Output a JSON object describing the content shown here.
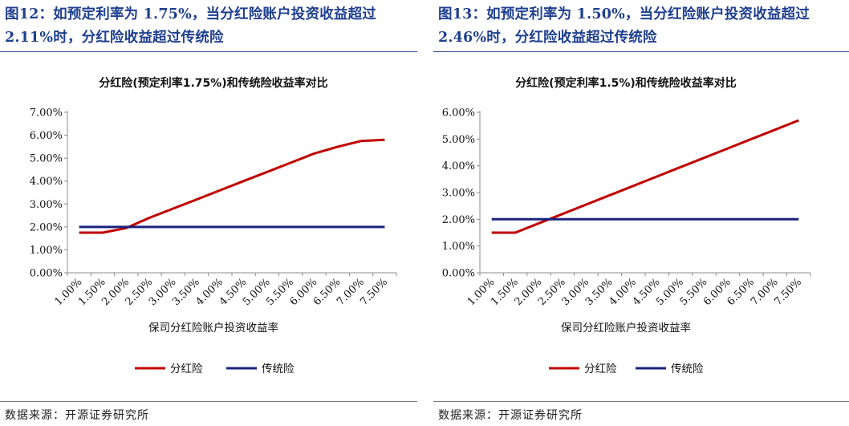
{
  "figures": [
    {
      "title": "图12：如预定利率为 1.75%，当分红险账户投资收益超过 2.11%时，分红险收益超过传统险",
      "source": "数据来源：开源证券研究所"
    },
    {
      "title": "图13：如预定利率为 1.50%，当分红险账户投资收益超过 2.46%时，分红险收益超过传统险",
      "source": "数据来源：开源证券研究所"
    }
  ],
  "chart_data": [
    {
      "type": "line",
      "title": "分红险(预定利率1.75%)和传统险收益率对比",
      "xlabel": "保司分红险账户投资收益率",
      "ylabel": "",
      "x": [
        "1.00%",
        "1.50%",
        "2.00%",
        "2.50%",
        "3.00%",
        "3.50%",
        "4.00%",
        "4.50%",
        "5.00%",
        "5.50%",
        "6.00%",
        "6.50%",
        "7.00%",
        "7.50%"
      ],
      "ylim": [
        0,
        7
      ],
      "yticks": [
        "0.00%",
        "1.00%",
        "2.00%",
        "3.00%",
        "4.00%",
        "5.00%",
        "6.00%",
        "7.00%"
      ],
      "series": [
        {
          "name": "分红险",
          "color": "#c00000",
          "values": [
            1.75,
            1.75,
            1.95,
            2.4,
            2.8,
            3.2,
            3.6,
            4.0,
            4.4,
            4.8,
            5.2,
            5.5,
            5.75,
            5.8
          ]
        },
        {
          "name": "传统险",
          "color": "#1a237e",
          "values": [
            2.0,
            2.0,
            2.0,
            2.0,
            2.0,
            2.0,
            2.0,
            2.0,
            2.0,
            2.0,
            2.0,
            2.0,
            2.0,
            2.0
          ]
        }
      ],
      "legend": "bottom",
      "grid": false
    },
    {
      "type": "line",
      "title": "分红险(预定利率1.5%)和传统险收益率对比",
      "xlabel": "保司分红险账户投资收益率",
      "ylabel": "",
      "x": [
        "1.00%",
        "1.50%",
        "2.00%",
        "2.50%",
        "3.00%",
        "3.50%",
        "4.00%",
        "4.50%",
        "5.00%",
        "5.50%",
        "6.00%",
        "6.50%",
        "7.00%",
        "7.50%"
      ],
      "ylim": [
        0,
        6
      ],
      "yticks": [
        "0.00%",
        "1.00%",
        "2.00%",
        "3.00%",
        "4.00%",
        "5.00%",
        "6.00%"
      ],
      "series": [
        {
          "name": "分红险",
          "color": "#c00000",
          "values": [
            1.5,
            1.5,
            1.85,
            2.2,
            2.55,
            2.9,
            3.25,
            3.6,
            3.95,
            4.3,
            4.65,
            5.0,
            5.35,
            5.7
          ]
        },
        {
          "name": "传统险",
          "color": "#1a237e",
          "values": [
            2.0,
            2.0,
            2.0,
            2.0,
            2.0,
            2.0,
            2.0,
            2.0,
            2.0,
            2.0,
            2.0,
            2.0,
            2.0,
            2.0
          ]
        }
      ],
      "legend": "bottom",
      "grid": false
    }
  ]
}
